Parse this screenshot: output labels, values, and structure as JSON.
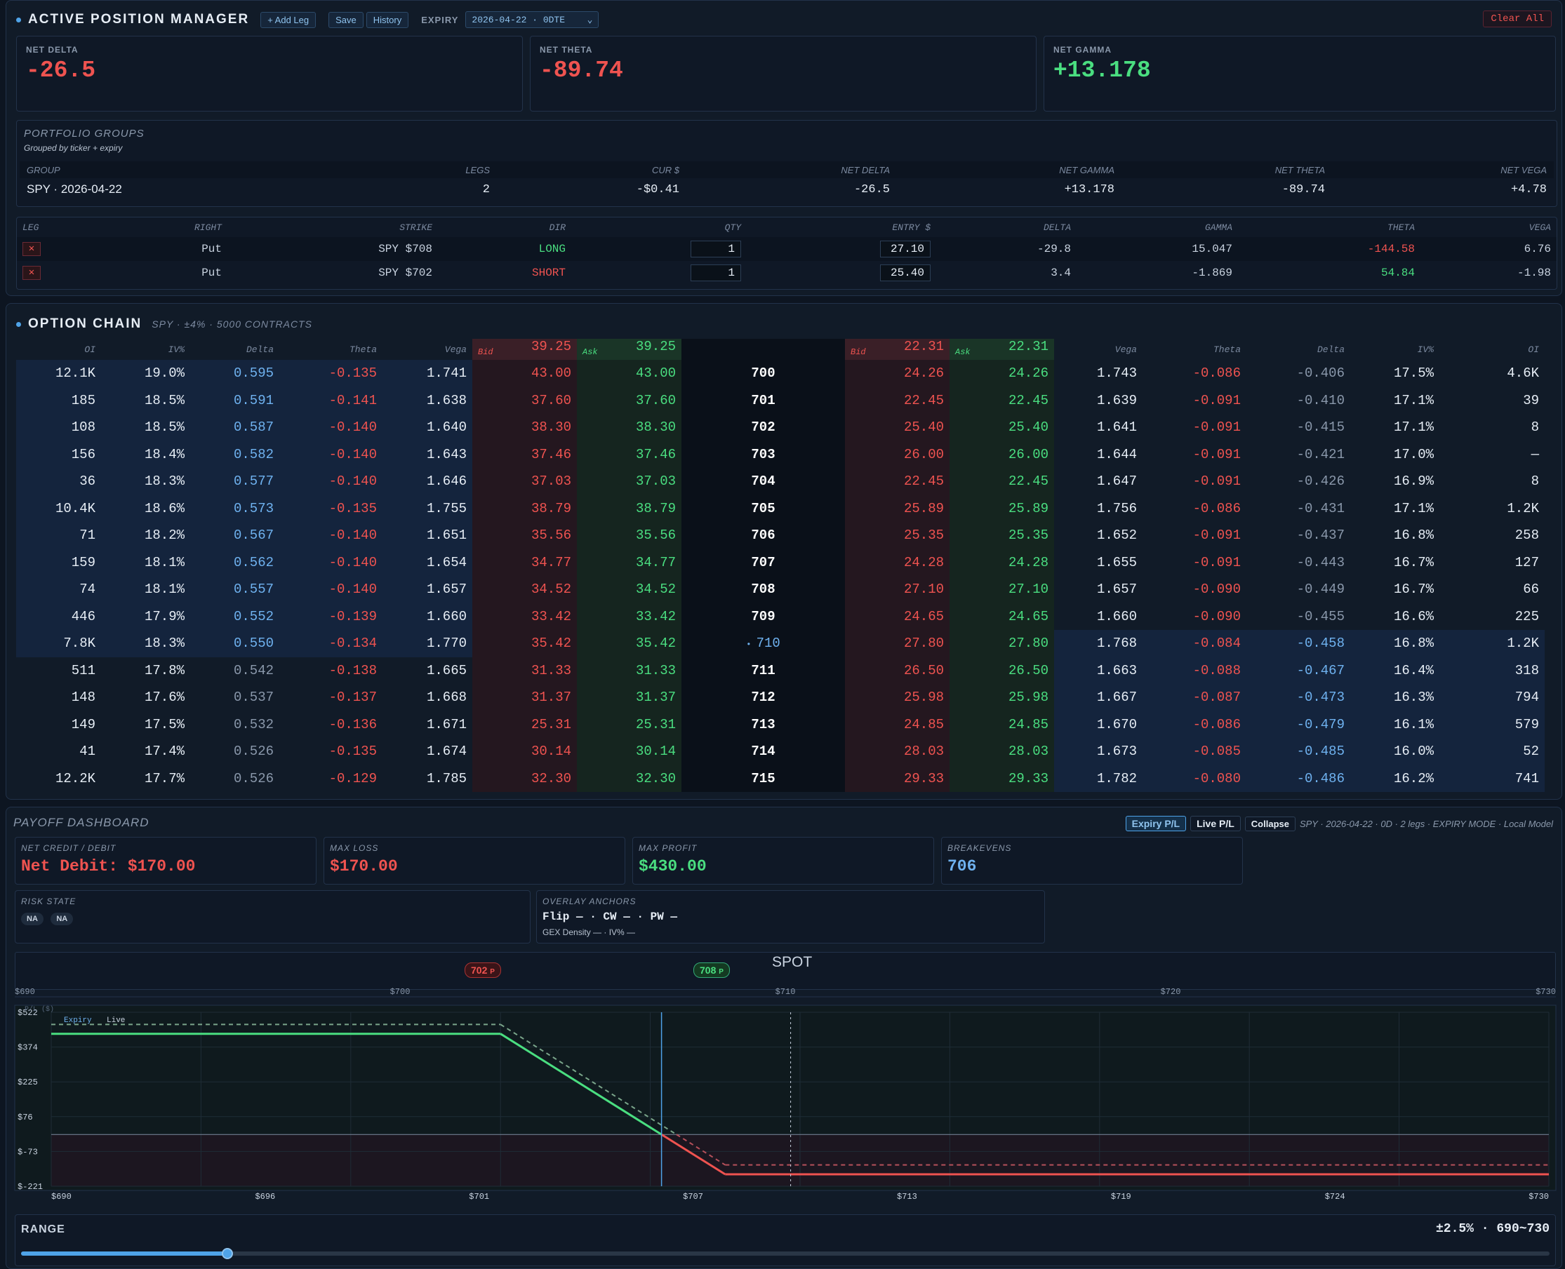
{
  "apm": {
    "title": "ACTIVE POSITION MANAGER",
    "add_leg": "+ Add Leg",
    "save": "Save",
    "history": "History",
    "expiry_label": "EXPIRY",
    "expiry_value": "2026-04-22 · 0DTE",
    "clear_all": "Clear All",
    "cards": [
      {
        "label": "NET DELTA",
        "value": "-26.5"
      },
      {
        "label": "NET THETA",
        "value": "-89.74"
      },
      {
        "label": "NET GAMMA",
        "value": "+13.178"
      }
    ],
    "groups": {
      "title": "PORTFOLIO GROUPS",
      "subtitle": "Grouped by ticker + expiry",
      "headers": [
        "GROUP",
        "LEGS",
        "CUR $",
        "NET DELTA",
        "NET GAMMA",
        "NET THETA",
        "NET VEGA"
      ],
      "row": [
        "SPY · 2026-04-22",
        "2",
        "-$0.41",
        "-26.5",
        "+13.178",
        "-89.74",
        "+4.78"
      ]
    },
    "legs": {
      "headers": [
        "LEG",
        "RIGHT",
        "STRIKE",
        "DIR",
        "QTY",
        "ENTRY $",
        "DELTA",
        "GAMMA",
        "THETA",
        "VEGA"
      ],
      "rows": [
        {
          "right": "Put",
          "strike": "SPY $708",
          "dir": "LONG",
          "qty": "1",
          "entry": "27.10",
          "delta": "-29.8",
          "gamma": "15.047",
          "theta": "-144.58",
          "vega": "6.76"
        },
        {
          "right": "Put",
          "strike": "SPY $702",
          "dir": "SHORT",
          "qty": "1",
          "entry": "25.40",
          "delta": "3.4",
          "gamma": "-1.869",
          "theta": "54.84",
          "vega": "-1.98"
        }
      ]
    }
  },
  "chain": {
    "title": "OPTION CHAIN",
    "subtitle": "SPY · ±4% · 5000 CONTRACTS",
    "call_headers": [
      "OI",
      "IV%",
      "Delta",
      "Theta",
      "Vega"
    ],
    "put_headers": [
      "Vega",
      "Theta",
      "Delta",
      "IV%",
      "OI"
    ],
    "call_bid_hdr": {
      "label": "Bid",
      "value": "39.25"
    },
    "call_ask_hdr": {
      "label": "Ask",
      "value": "39.25"
    },
    "put_bid_hdr": {
      "label": "Bid",
      "value": "22.31"
    },
    "put_ask_hdr": {
      "label": "Ask",
      "value": "22.31"
    },
    "atm_strike": "710",
    "rows": [
      {
        "c": [
          "12.1K",
          "19.0%",
          "0.595",
          "-0.135",
          "1.741",
          "43.00",
          "43.00"
        ],
        "k": "700",
        "p": [
          "24.26",
          "24.26",
          "1.743",
          "-0.086",
          "-0.406",
          "17.5%",
          "4.6K"
        ]
      },
      {
        "c": [
          "185",
          "18.5%",
          "0.591",
          "-0.141",
          "1.638",
          "37.60",
          "37.60"
        ],
        "k": "701",
        "p": [
          "22.45",
          "22.45",
          "1.639",
          "-0.091",
          "-0.410",
          "17.1%",
          "39"
        ]
      },
      {
        "c": [
          "108",
          "18.5%",
          "0.587",
          "-0.140",
          "1.640",
          "38.30",
          "38.30"
        ],
        "k": "702",
        "p": [
          "25.40",
          "25.40",
          "1.641",
          "-0.091",
          "-0.415",
          "17.1%",
          "8"
        ]
      },
      {
        "c": [
          "156",
          "18.4%",
          "0.582",
          "-0.140",
          "1.643",
          "37.46",
          "37.46"
        ],
        "k": "703",
        "p": [
          "26.00",
          "26.00",
          "1.644",
          "-0.091",
          "-0.421",
          "17.0%",
          "—"
        ]
      },
      {
        "c": [
          "36",
          "18.3%",
          "0.577",
          "-0.140",
          "1.646",
          "37.03",
          "37.03"
        ],
        "k": "704",
        "p": [
          "22.45",
          "22.45",
          "1.647",
          "-0.091",
          "-0.426",
          "16.9%",
          "8"
        ]
      },
      {
        "c": [
          "10.4K",
          "18.6%",
          "0.573",
          "-0.135",
          "1.755",
          "38.79",
          "38.79"
        ],
        "k": "705",
        "p": [
          "25.89",
          "25.89",
          "1.756",
          "-0.086",
          "-0.431",
          "17.1%",
          "1.2K"
        ]
      },
      {
        "c": [
          "71",
          "18.2%",
          "0.567",
          "-0.140",
          "1.651",
          "35.56",
          "35.56"
        ],
        "k": "706",
        "p": [
          "25.35",
          "25.35",
          "1.652",
          "-0.091",
          "-0.437",
          "16.8%",
          "258"
        ]
      },
      {
        "c": [
          "159",
          "18.1%",
          "0.562",
          "-0.140",
          "1.654",
          "34.77",
          "34.77"
        ],
        "k": "707",
        "p": [
          "24.28",
          "24.28",
          "1.655",
          "-0.091",
          "-0.443",
          "16.7%",
          "127"
        ]
      },
      {
        "c": [
          "74",
          "18.1%",
          "0.557",
          "-0.140",
          "1.657",
          "34.52",
          "34.52"
        ],
        "k": "708",
        "p": [
          "27.10",
          "27.10",
          "1.657",
          "-0.090",
          "-0.449",
          "16.7%",
          "66"
        ]
      },
      {
        "c": [
          "446",
          "17.9%",
          "0.552",
          "-0.139",
          "1.660",
          "33.42",
          "33.42"
        ],
        "k": "709",
        "p": [
          "24.65",
          "24.65",
          "1.660",
          "-0.090",
          "-0.455",
          "16.6%",
          "225"
        ]
      },
      {
        "c": [
          "7.8K",
          "18.3%",
          "0.550",
          "-0.134",
          "1.770",
          "35.42",
          "35.42"
        ],
        "k": "710",
        "p": [
          "27.80",
          "27.80",
          "1.768",
          "-0.084",
          "-0.458",
          "16.8%",
          "1.2K"
        ]
      },
      {
        "c": [
          "511",
          "17.8%",
          "0.542",
          "-0.138",
          "1.665",
          "31.33",
          "31.33"
        ],
        "k": "711",
        "p": [
          "26.50",
          "26.50",
          "1.663",
          "-0.088",
          "-0.467",
          "16.4%",
          "318"
        ]
      },
      {
        "c": [
          "148",
          "17.6%",
          "0.537",
          "-0.137",
          "1.668",
          "31.37",
          "31.37"
        ],
        "k": "712",
        "p": [
          "25.98",
          "25.98",
          "1.667",
          "-0.087",
          "-0.473",
          "16.3%",
          "794"
        ]
      },
      {
        "c": [
          "149",
          "17.5%",
          "0.532",
          "-0.136",
          "1.671",
          "25.31",
          "25.31"
        ],
        "k": "713",
        "p": [
          "24.85",
          "24.85",
          "1.670",
          "-0.086",
          "-0.479",
          "16.1%",
          "579"
        ]
      },
      {
        "c": [
          "41",
          "17.4%",
          "0.526",
          "-0.135",
          "1.674",
          "30.14",
          "30.14"
        ],
        "k": "714",
        "p": [
          "28.03",
          "28.03",
          "1.673",
          "-0.085",
          "-0.485",
          "16.0%",
          "52"
        ]
      },
      {
        "c": [
          "12.2K",
          "17.7%",
          "0.526",
          "-0.129",
          "1.785",
          "32.30",
          "32.30"
        ],
        "k": "715",
        "p": [
          "29.33",
          "29.33",
          "1.782",
          "-0.080",
          "-0.486",
          "16.2%",
          "741"
        ]
      }
    ]
  },
  "payoff": {
    "title": "PAYOFF DASHBOARD",
    "toggles": [
      "Expiry P/L",
      "Live P/L",
      "Collapse"
    ],
    "meta": "SPY · 2026-04-22 · 0D · 2 legs · EXPIRY MODE · Local Model",
    "cards": [
      {
        "label": "NET CREDIT / DEBIT",
        "value": "Net Debit: $170.00"
      },
      {
        "label": "MAX LOSS",
        "value": "$170.00"
      },
      {
        "label": "MAX PROFIT",
        "value": "$430.00"
      },
      {
        "label": "BREAKEVENS",
        "value": "706"
      }
    ],
    "risk": {
      "label": "RISK STATE",
      "pills": [
        "NA",
        "NA"
      ]
    },
    "overlay": {
      "label": "OVERLAY ANCHORS",
      "line1": "Flip — · CW — · PW —",
      "line2": "GEX Density — · IV% —"
    },
    "markers": [
      {
        "text": "702",
        "tag": "P"
      },
      {
        "text": "708",
        "tag": "P"
      }
    ],
    "spot_label": "SPOT",
    "range": {
      "label": "RANGE",
      "value": "±2.5% · 690~730",
      "fraction": 0.135
    },
    "colors": {
      "profit": "#4ade80",
      "loss": "#ef5350",
      "spot": "#4fa3e8"
    }
  },
  "chart_data": {
    "type": "line",
    "title": "",
    "ylabel": "P/L ($)",
    "top_ticks": [
      "$690",
      "$700",
      "$710",
      "$720",
      "$730"
    ],
    "x_ticks": [
      "$690",
      "$696",
      "$701",
      "$707",
      "$713",
      "$719",
      "$724",
      "$730"
    ],
    "y_ticks": [
      "$522",
      "$374",
      "$225",
      "$76",
      "$-73",
      "$-221"
    ],
    "xlim": [
      690,
      730
    ],
    "ylim": [
      -221,
      522
    ],
    "legend": [
      "Expiry",
      "Live"
    ],
    "spot": 706,
    "series": [
      {
        "name": "Expiry",
        "x": [
          690,
          702,
          708,
          730
        ],
        "y": [
          430,
          430,
          -170,
          -170
        ]
      },
      {
        "name": "Live",
        "x": [
          690,
          702,
          708,
          730
        ],
        "y": [
          470,
          470,
          -130,
          -130
        ]
      }
    ]
  }
}
